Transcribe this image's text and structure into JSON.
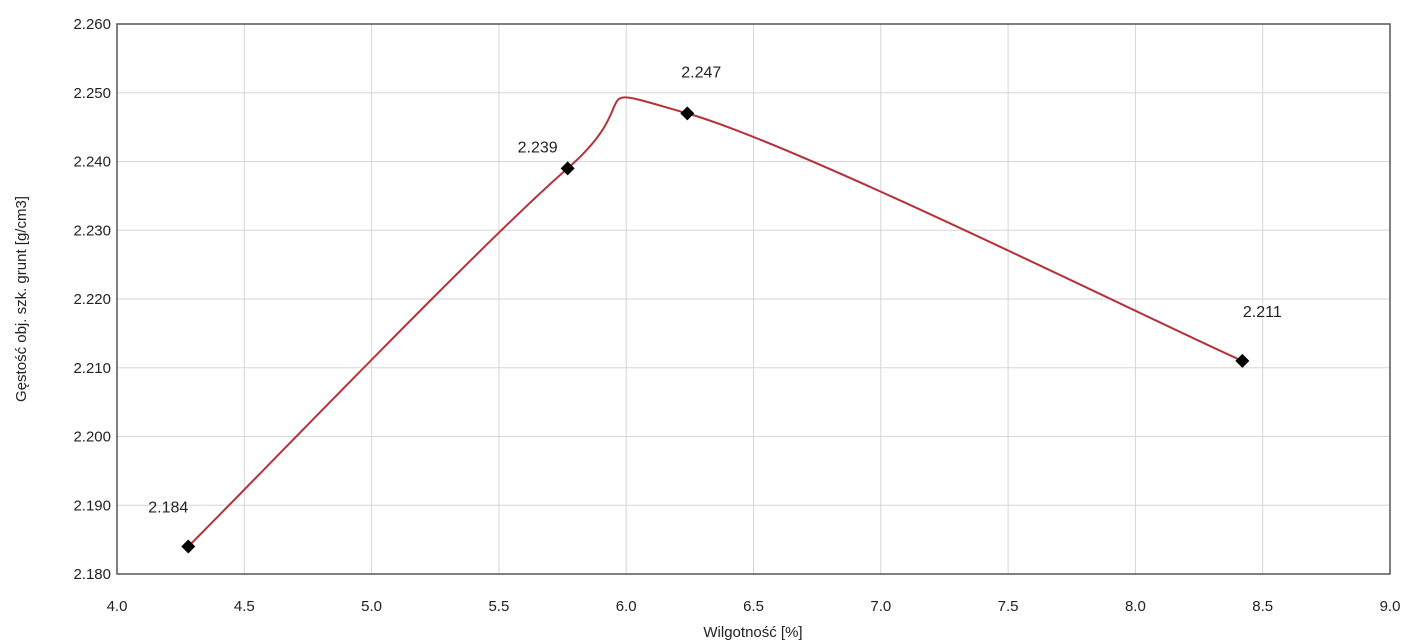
{
  "chart_data": {
    "type": "line",
    "title": "",
    "xlabel": "Wilgotność [%]",
    "ylabel": "Gęstość obj. szk. grunt [g/cm3]",
    "xlim": [
      4.0,
      9.0
    ],
    "ylim": [
      2.18,
      2.26
    ],
    "x_ticks": [
      "4.0",
      "4.5",
      "5.0",
      "5.5",
      "6.0",
      "6.5",
      "7.0",
      "7.5",
      "8.0",
      "8.5",
      "9.0"
    ],
    "y_ticks": [
      "2.180",
      "2.190",
      "2.200",
      "2.210",
      "2.220",
      "2.230",
      "2.240",
      "2.250",
      "2.260"
    ],
    "grid": true,
    "series": [
      {
        "points": [
          {
            "x": 4.28,
            "y": 2.184,
            "label": "2.184"
          },
          {
            "x": 5.77,
            "y": 2.239,
            "label": "2.239"
          },
          {
            "x": 6.24,
            "y": 2.247,
            "label": "2.247"
          },
          {
            "x": 8.42,
            "y": 2.211,
            "label": "2.211"
          }
        ],
        "line_color": "#b5323a",
        "marker_color": "#000000",
        "marker": "diamond",
        "smoothed": true
      }
    ]
  }
}
